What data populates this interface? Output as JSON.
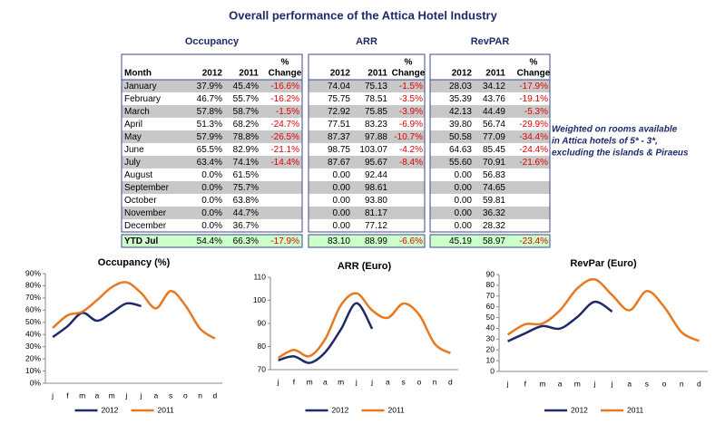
{
  "title": "Overall performance of the Attica Hotel Industry",
  "table": {
    "groups": [
      "Occupancy",
      "ARR",
      "RevPAR"
    ],
    "columns": [
      "Month",
      "2012",
      "2011"
    ],
    "change_header": [
      "%",
      "Change"
    ],
    "rows": [
      [
        "January",
        "37.9%",
        "45.4%",
        "-16.6%",
        "74.04",
        "75.13",
        "-1.5%",
        "28.03",
        "34.12",
        "-17.9%"
      ],
      [
        "February",
        "46.7%",
        "55.7%",
        "-16.2%",
        "75.75",
        "78.51",
        "-3.5%",
        "35.39",
        "43.76",
        "-19.1%"
      ],
      [
        "March",
        "57.8%",
        "58.7%",
        "-1.5%",
        "72.92",
        "75.85",
        "-3.9%",
        "42.13",
        "44.49",
        "-5.3%"
      ],
      [
        "April",
        "51.3%",
        "68.2%",
        "-24.7%",
        "77.51",
        "83.23",
        "-6.9%",
        "39.80",
        "56.74",
        "-29.9%"
      ],
      [
        "May",
        "57.9%",
        "78.8%",
        "-26.5%",
        "87.37",
        "97.88",
        "-10.7%",
        "50.58",
        "77.09",
        "-34.4%"
      ],
      [
        "June",
        "65.5%",
        "82.9%",
        "-21.1%",
        "98.75",
        "103.07",
        "-4.2%",
        "64.63",
        "85.45",
        "-24.4%"
      ],
      [
        "July",
        "63.4%",
        "74.1%",
        "-14.4%",
        "87.67",
        "95.67",
        "-8.4%",
        "55.60",
        "70.91",
        "-21.6%"
      ],
      [
        "August",
        "0.0%",
        "61.5%",
        null,
        "0.00",
        "92.44",
        null,
        "0.00",
        "56.83",
        null
      ],
      [
        "September",
        "0.0%",
        "75.7%",
        null,
        "0.00",
        "98.61",
        null,
        "0.00",
        "74.65",
        null
      ],
      [
        "October",
        "0.0%",
        "63.8%",
        null,
        "0.00",
        "93.80",
        null,
        "0.00",
        "59.81",
        null
      ],
      [
        "November",
        "0.0%",
        "44.7%",
        null,
        "0.00",
        "81.17",
        null,
        "0.00",
        "36.32",
        null
      ],
      [
        "December",
        "0.0%",
        "36.7%",
        null,
        "0.00",
        "77.12",
        null,
        "0.00",
        "28.32",
        null
      ]
    ],
    "total": [
      "YTD Jul",
      "54.4%",
      "66.3%",
      "-17.9%",
      "83.10",
      "88.99",
      "-6.6%",
      "45.19",
      "58.97",
      "-23.4%"
    ]
  },
  "note": [
    "Weighted on rooms available",
    "in Attica hotels of 5* - 3*,",
    "excluding the islands & Piraeus"
  ],
  "chart_data": [
    {
      "type": "line",
      "title": "Occupancy (%)",
      "categories": [
        "j",
        "f",
        "m",
        "a",
        "m",
        "j",
        "j",
        "a",
        "s",
        "o",
        "n",
        "d"
      ],
      "series": [
        {
          "name": "2012",
          "color": "#1f2a6b",
          "values": [
            37.9,
            46.7,
            57.8,
            51.3,
            57.9,
            65.5,
            63.4,
            null,
            null,
            null,
            null,
            null
          ]
        },
        {
          "name": "2011",
          "color": "#e8781e",
          "values": [
            45.4,
            55.7,
            58.7,
            68.2,
            78.8,
            82.9,
            74.1,
            61.5,
            75.7,
            63.8,
            44.7,
            36.7
          ]
        }
      ],
      "ylim": [
        0,
        90
      ],
      "yticks": [
        {
          "value": 0,
          "label": "0%"
        },
        {
          "value": 10,
          "label": "10%"
        },
        {
          "value": 20,
          "label": "20%"
        },
        {
          "value": 30,
          "label": "30%"
        },
        {
          "value": 40,
          "label": "40%"
        },
        {
          "value": 50,
          "label": "50%"
        },
        {
          "value": 60,
          "label": "60%"
        },
        {
          "value": 70,
          "label": "70%"
        },
        {
          "value": 80,
          "label": "80%"
        },
        {
          "value": 90,
          "label": "90%"
        }
      ],
      "legend": "bottom"
    },
    {
      "type": "line",
      "title": "ARR (Euro)",
      "categories": [
        "j",
        "f",
        "m",
        "a",
        "m",
        "j",
        "j",
        "a",
        "s",
        "o",
        "n",
        "d"
      ],
      "series": [
        {
          "name": "2012",
          "color": "#1f2a6b",
          "values": [
            74.04,
            75.75,
            72.92,
            77.51,
            87.37,
            98.75,
            87.67,
            null,
            null,
            null,
            null,
            null
          ]
        },
        {
          "name": "2011",
          "color": "#e8781e",
          "values": [
            75.13,
            78.51,
            75.85,
            83.23,
            97.88,
            103.07,
            95.67,
            92.44,
            98.61,
            93.8,
            81.17,
            77.12
          ]
        }
      ],
      "ylim": [
        70,
        110
      ],
      "yticks": [
        70,
        80,
        90,
        100,
        110
      ],
      "legend": "bottom"
    },
    {
      "type": "line",
      "title": "RevPar (Euro)",
      "categories": [
        "j",
        "f",
        "m",
        "a",
        "m",
        "j",
        "j",
        "a",
        "s",
        "o",
        "n",
        "d"
      ],
      "series": [
        {
          "name": "2012",
          "color": "#1f2a6b",
          "values": [
            28.03,
            35.39,
            42.13,
            39.8,
            50.58,
            64.63,
            55.6,
            null,
            null,
            null,
            null,
            null
          ]
        },
        {
          "name": "2011",
          "color": "#e8781e",
          "values": [
            34.12,
            43.76,
            44.49,
            56.74,
            77.09,
            85.45,
            70.91,
            56.83,
            74.65,
            59.81,
            36.32,
            28.32
          ]
        }
      ],
      "ylim": [
        0,
        90
      ],
      "yticks": [
        0,
        10,
        20,
        30,
        40,
        50,
        60,
        70,
        80,
        90
      ],
      "legend": "bottom"
    }
  ]
}
